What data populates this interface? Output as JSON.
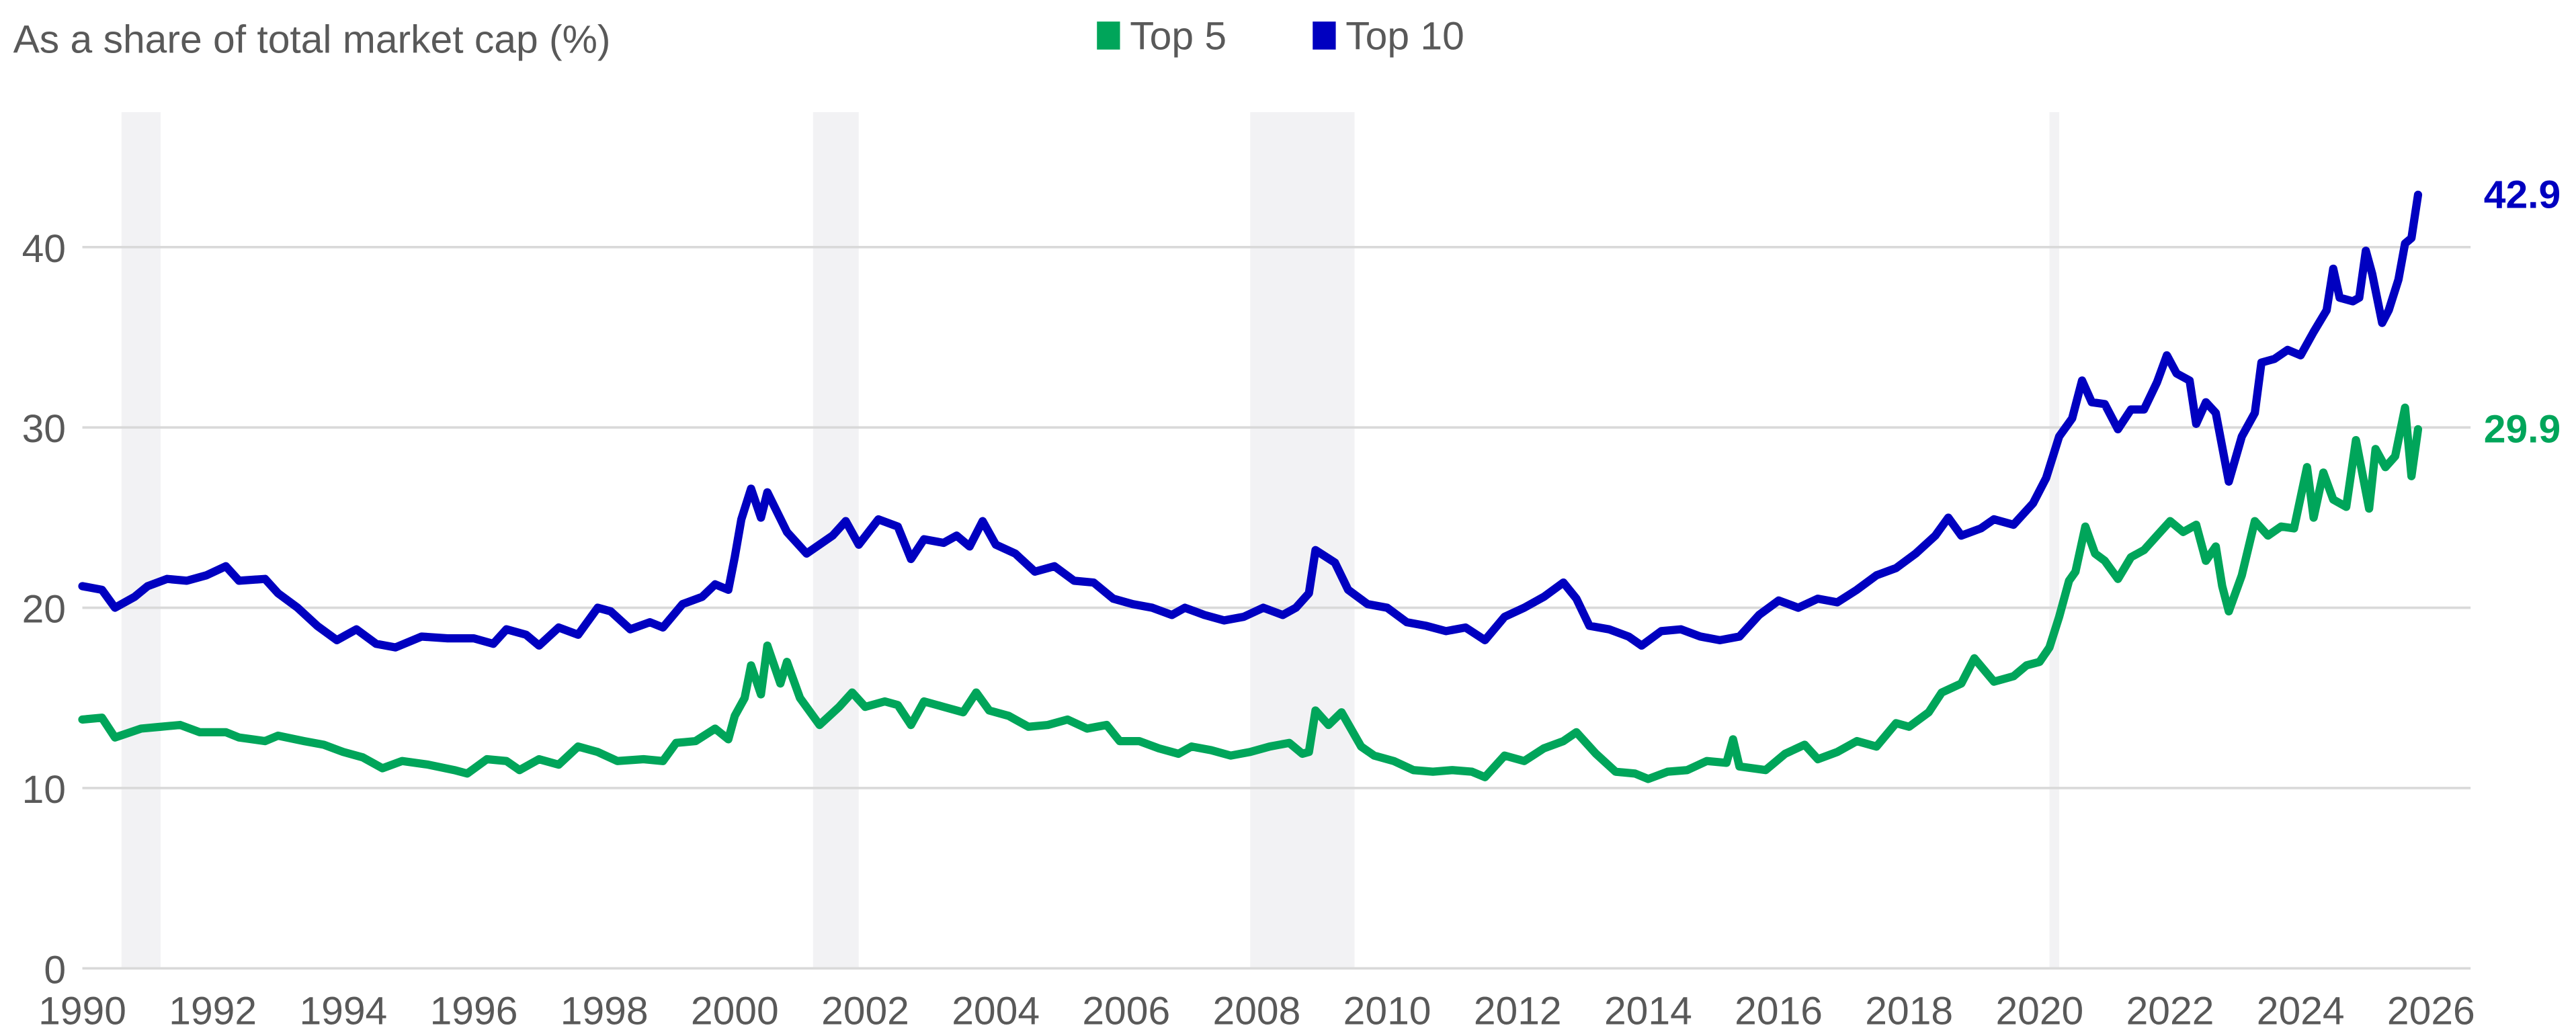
{
  "chart_data": {
    "type": "line",
    "title": "As a share of total market cap (%)",
    "xlim": [
      1990,
      2026
    ],
    "ylim": [
      0,
      45
    ],
    "x_ticks": [
      "1990",
      "1992",
      "1994",
      "1996",
      "1998",
      "2000",
      "2002",
      "2004",
      "2006",
      "2008",
      "2010",
      "2012",
      "2014",
      "2016",
      "2018",
      "2020",
      "2022",
      "2024",
      "2026"
    ],
    "y_ticks": [
      "0",
      "10",
      "20",
      "30",
      "40"
    ],
    "grid": "horizontal",
    "legend_position": "top-center",
    "shaded_periods": [
      [
        1990.6,
        1991.2
      ],
      [
        2001.2,
        2001.9
      ],
      [
        2007.9,
        2009.5
      ],
      [
        2020.15,
        2020.3
      ]
    ],
    "colors": {
      "top5": "#00A55A",
      "top10": "#0000C0",
      "shading": "#F2F2F4",
      "grid": "#D9D9D9",
      "text": "#595959"
    },
    "series": [
      {
        "name": "Top 10",
        "color": "#0000C0",
        "end_label": "42.9",
        "points": [
          [
            1990.0,
            21.2
          ],
          [
            1990.3,
            21.0
          ],
          [
            1990.5,
            20.0
          ],
          [
            1990.8,
            20.6
          ],
          [
            1991.0,
            21.2
          ],
          [
            1991.3,
            21.6
          ],
          [
            1991.6,
            21.5
          ],
          [
            1991.9,
            21.8
          ],
          [
            1992.2,
            22.3
          ],
          [
            1992.4,
            21.5
          ],
          [
            1992.8,
            21.6
          ],
          [
            1993.0,
            20.8
          ],
          [
            1993.3,
            20.0
          ],
          [
            1993.6,
            19.0
          ],
          [
            1993.9,
            18.2
          ],
          [
            1994.2,
            18.8
          ],
          [
            1994.5,
            18.0
          ],
          [
            1994.8,
            17.8
          ],
          [
            1995.2,
            18.4
          ],
          [
            1995.6,
            18.3
          ],
          [
            1996.0,
            18.3
          ],
          [
            1996.3,
            18.0
          ],
          [
            1996.5,
            18.8
          ],
          [
            1996.8,
            18.5
          ],
          [
            1997.0,
            17.9
          ],
          [
            1997.3,
            18.9
          ],
          [
            1997.6,
            18.5
          ],
          [
            1997.9,
            20.0
          ],
          [
            1998.1,
            19.8
          ],
          [
            1998.4,
            18.8
          ],
          [
            1998.7,
            19.2
          ],
          [
            1998.9,
            18.9
          ],
          [
            1999.2,
            20.2
          ],
          [
            1999.5,
            20.6
          ],
          [
            1999.7,
            21.3
          ],
          [
            1999.9,
            21.0
          ],
          [
            2000.0,
            22.8
          ],
          [
            2000.1,
            24.9
          ],
          [
            2000.25,
            26.6
          ],
          [
            2000.4,
            25.0
          ],
          [
            2000.5,
            26.4
          ],
          [
            2000.8,
            24.2
          ],
          [
            2001.1,
            23.0
          ],
          [
            2001.5,
            24.0
          ],
          [
            2001.7,
            24.8
          ],
          [
            2001.9,
            23.5
          ],
          [
            2002.2,
            24.9
          ],
          [
            2002.5,
            24.5
          ],
          [
            2002.7,
            22.7
          ],
          [
            2002.9,
            23.8
          ],
          [
            2003.2,
            23.6
          ],
          [
            2003.4,
            24.0
          ],
          [
            2003.6,
            23.4
          ],
          [
            2003.8,
            24.8
          ],
          [
            2004.0,
            23.5
          ],
          [
            2004.3,
            23.0
          ],
          [
            2004.6,
            22.0
          ],
          [
            2004.9,
            22.3
          ],
          [
            2005.2,
            21.5
          ],
          [
            2005.5,
            21.4
          ],
          [
            2005.8,
            20.5
          ],
          [
            2006.1,
            20.2
          ],
          [
            2006.4,
            20.0
          ],
          [
            2006.7,
            19.6
          ],
          [
            2006.9,
            20.0
          ],
          [
            2007.2,
            19.6
          ],
          [
            2007.5,
            19.3
          ],
          [
            2007.8,
            19.5
          ],
          [
            2008.1,
            20.0
          ],
          [
            2008.4,
            19.6
          ],
          [
            2008.6,
            20.0
          ],
          [
            2008.8,
            20.8
          ],
          [
            2008.9,
            23.2
          ],
          [
            2009.2,
            22.5
          ],
          [
            2009.4,
            21.0
          ],
          [
            2009.7,
            20.2
          ],
          [
            2010.0,
            20.0
          ],
          [
            2010.3,
            19.2
          ],
          [
            2010.6,
            19.0
          ],
          [
            2010.9,
            18.7
          ],
          [
            2011.2,
            18.9
          ],
          [
            2011.5,
            18.2
          ],
          [
            2011.8,
            19.5
          ],
          [
            2012.1,
            20.0
          ],
          [
            2012.4,
            20.6
          ],
          [
            2012.7,
            21.4
          ],
          [
            2012.9,
            20.5
          ],
          [
            2013.1,
            19.0
          ],
          [
            2013.4,
            18.8
          ],
          [
            2013.7,
            18.4
          ],
          [
            2013.9,
            17.9
          ],
          [
            2014.2,
            18.7
          ],
          [
            2014.5,
            18.8
          ],
          [
            2014.8,
            18.4
          ],
          [
            2015.1,
            18.2
          ],
          [
            2015.4,
            18.4
          ],
          [
            2015.7,
            19.6
          ],
          [
            2016.0,
            20.4
          ],
          [
            2016.3,
            20.0
          ],
          [
            2016.6,
            20.5
          ],
          [
            2016.9,
            20.3
          ],
          [
            2017.2,
            21.0
          ],
          [
            2017.5,
            21.8
          ],
          [
            2017.8,
            22.2
          ],
          [
            2018.1,
            23.0
          ],
          [
            2018.4,
            24.0
          ],
          [
            2018.6,
            25.0
          ],
          [
            2018.8,
            24.0
          ],
          [
            2019.1,
            24.4
          ],
          [
            2019.3,
            24.9
          ],
          [
            2019.6,
            24.6
          ],
          [
            2019.9,
            25.8
          ],
          [
            2020.1,
            27.2
          ],
          [
            2020.3,
            29.5
          ],
          [
            2020.5,
            30.5
          ],
          [
            2020.65,
            32.6
          ],
          [
            2020.8,
            31.4
          ],
          [
            2021.0,
            31.3
          ],
          [
            2021.2,
            29.9
          ],
          [
            2021.4,
            31.0
          ],
          [
            2021.6,
            31.0
          ],
          [
            2021.8,
            32.5
          ],
          [
            2021.95,
            34.0
          ],
          [
            2022.1,
            33.0
          ],
          [
            2022.3,
            32.6
          ],
          [
            2022.4,
            30.2
          ],
          [
            2022.55,
            31.4
          ],
          [
            2022.7,
            30.8
          ],
          [
            2022.9,
            27.0
          ],
          [
            2023.1,
            29.5
          ],
          [
            2023.3,
            30.8
          ],
          [
            2023.4,
            33.6
          ],
          [
            2023.6,
            33.8
          ],
          [
            2023.8,
            34.3
          ],
          [
            2024.0,
            34.0
          ],
          [
            2024.2,
            35.3
          ],
          [
            2024.4,
            36.5
          ],
          [
            2024.5,
            38.8
          ],
          [
            2024.6,
            37.2
          ],
          [
            2024.8,
            37.0
          ],
          [
            2024.9,
            37.2
          ],
          [
            2025.0,
            39.8
          ],
          [
            2025.1,
            38.5
          ],
          [
            2025.25,
            35.8
          ],
          [
            2025.35,
            36.5
          ],
          [
            2025.5,
            38.2
          ],
          [
            2025.6,
            40.2
          ],
          [
            2025.7,
            40.5
          ],
          [
            2025.8,
            42.9
          ]
        ]
      },
      {
        "name": "Top 5",
        "color": "#00A55A",
        "end_label": "29.9",
        "points": [
          [
            1990.0,
            13.8
          ],
          [
            1990.3,
            13.9
          ],
          [
            1990.5,
            12.8
          ],
          [
            1990.9,
            13.3
          ],
          [
            1991.2,
            13.4
          ],
          [
            1991.5,
            13.5
          ],
          [
            1991.8,
            13.1
          ],
          [
            1992.2,
            13.1
          ],
          [
            1992.4,
            12.8
          ],
          [
            1992.8,
            12.6
          ],
          [
            1993.0,
            12.9
          ],
          [
            1993.4,
            12.6
          ],
          [
            1993.7,
            12.4
          ],
          [
            1994.0,
            12.0
          ],
          [
            1994.3,
            11.7
          ],
          [
            1994.6,
            11.1
          ],
          [
            1994.9,
            11.5
          ],
          [
            1995.3,
            11.3
          ],
          [
            1995.7,
            11.0
          ],
          [
            1995.9,
            10.8
          ],
          [
            1996.2,
            11.6
          ],
          [
            1996.5,
            11.5
          ],
          [
            1996.7,
            11.0
          ],
          [
            1997.0,
            11.6
          ],
          [
            1997.3,
            11.3
          ],
          [
            1997.6,
            12.3
          ],
          [
            1997.9,
            12.0
          ],
          [
            1998.2,
            11.5
          ],
          [
            1998.6,
            11.6
          ],
          [
            1998.9,
            11.5
          ],
          [
            1999.1,
            12.5
          ],
          [
            1999.4,
            12.6
          ],
          [
            1999.7,
            13.3
          ],
          [
            1999.9,
            12.7
          ],
          [
            2000.0,
            14.0
          ],
          [
            2000.15,
            15.0
          ],
          [
            2000.25,
            16.8
          ],
          [
            2000.4,
            15.2
          ],
          [
            2000.5,
            17.9
          ],
          [
            2000.7,
            15.8
          ],
          [
            2000.8,
            17.0
          ],
          [
            2001.0,
            15.0
          ],
          [
            2001.3,
            13.5
          ],
          [
            2001.6,
            14.5
          ],
          [
            2001.8,
            15.3
          ],
          [
            2002.0,
            14.5
          ],
          [
            2002.3,
            14.8
          ],
          [
            2002.5,
            14.6
          ],
          [
            2002.7,
            13.5
          ],
          [
            2002.9,
            14.8
          ],
          [
            2003.2,
            14.5
          ],
          [
            2003.5,
            14.2
          ],
          [
            2003.7,
            15.3
          ],
          [
            2003.9,
            14.3
          ],
          [
            2004.2,
            14.0
          ],
          [
            2004.5,
            13.4
          ],
          [
            2004.8,
            13.5
          ],
          [
            2005.1,
            13.8
          ],
          [
            2005.4,
            13.3
          ],
          [
            2005.7,
            13.5
          ],
          [
            2005.9,
            12.6
          ],
          [
            2006.2,
            12.6
          ],
          [
            2006.5,
            12.2
          ],
          [
            2006.8,
            11.9
          ],
          [
            2007.0,
            12.3
          ],
          [
            2007.3,
            12.1
          ],
          [
            2007.6,
            11.8
          ],
          [
            2007.9,
            12.0
          ],
          [
            2008.2,
            12.3
          ],
          [
            2008.5,
            12.5
          ],
          [
            2008.7,
            11.9
          ],
          [
            2008.8,
            12.0
          ],
          [
            2008.9,
            14.3
          ],
          [
            2009.1,
            13.5
          ],
          [
            2009.3,
            14.2
          ],
          [
            2009.6,
            12.3
          ],
          [
            2009.8,
            11.8
          ],
          [
            2010.1,
            11.5
          ],
          [
            2010.4,
            11.0
          ],
          [
            2010.7,
            10.9
          ],
          [
            2011.0,
            11.0
          ],
          [
            2011.3,
            10.9
          ],
          [
            2011.5,
            10.6
          ],
          [
            2011.8,
            11.8
          ],
          [
            2012.1,
            11.5
          ],
          [
            2012.4,
            12.2
          ],
          [
            2012.7,
            12.6
          ],
          [
            2012.9,
            13.1
          ],
          [
            2013.2,
            11.9
          ],
          [
            2013.5,
            10.9
          ],
          [
            2013.8,
            10.8
          ],
          [
            2014.0,
            10.5
          ],
          [
            2014.3,
            10.9
          ],
          [
            2014.6,
            11.0
          ],
          [
            2014.9,
            11.5
          ],
          [
            2015.2,
            11.4
          ],
          [
            2015.3,
            12.7
          ],
          [
            2015.4,
            11.2
          ],
          [
            2015.8,
            11.0
          ],
          [
            2016.1,
            11.9
          ],
          [
            2016.4,
            12.4
          ],
          [
            2016.6,
            11.6
          ],
          [
            2016.9,
            12.0
          ],
          [
            2017.2,
            12.6
          ],
          [
            2017.5,
            12.3
          ],
          [
            2017.8,
            13.6
          ],
          [
            2018.0,
            13.4
          ],
          [
            2018.3,
            14.2
          ],
          [
            2018.5,
            15.3
          ],
          [
            2018.8,
            15.8
          ],
          [
            2019.0,
            17.2
          ],
          [
            2019.3,
            15.9
          ],
          [
            2019.6,
            16.2
          ],
          [
            2019.8,
            16.8
          ],
          [
            2020.0,
            17.0
          ],
          [
            2020.15,
            17.8
          ],
          [
            2020.3,
            19.5
          ],
          [
            2020.45,
            21.5
          ],
          [
            2020.55,
            22.0
          ],
          [
            2020.7,
            24.5
          ],
          [
            2020.85,
            23.0
          ],
          [
            2021.0,
            22.6
          ],
          [
            2021.2,
            21.6
          ],
          [
            2021.4,
            22.8
          ],
          [
            2021.6,
            23.2
          ],
          [
            2021.8,
            24.0
          ],
          [
            2022.0,
            24.8
          ],
          [
            2022.2,
            24.2
          ],
          [
            2022.4,
            24.6
          ],
          [
            2022.55,
            22.6
          ],
          [
            2022.7,
            23.4
          ],
          [
            2022.8,
            21.2
          ],
          [
            2022.9,
            19.8
          ],
          [
            2023.1,
            21.8
          ],
          [
            2023.3,
            24.8
          ],
          [
            2023.5,
            24.0
          ],
          [
            2023.7,
            24.5
          ],
          [
            2023.9,
            24.4
          ],
          [
            2024.1,
            27.8
          ],
          [
            2024.2,
            25.0
          ],
          [
            2024.35,
            27.5
          ],
          [
            2024.5,
            26.0
          ],
          [
            2024.7,
            25.6
          ],
          [
            2024.85,
            29.3
          ],
          [
            2025.05,
            25.5
          ],
          [
            2025.15,
            28.8
          ],
          [
            2025.3,
            27.8
          ],
          [
            2025.45,
            28.4
          ],
          [
            2025.6,
            31.1
          ],
          [
            2025.7,
            27.3
          ],
          [
            2025.8,
            29.9
          ]
        ]
      }
    ]
  }
}
